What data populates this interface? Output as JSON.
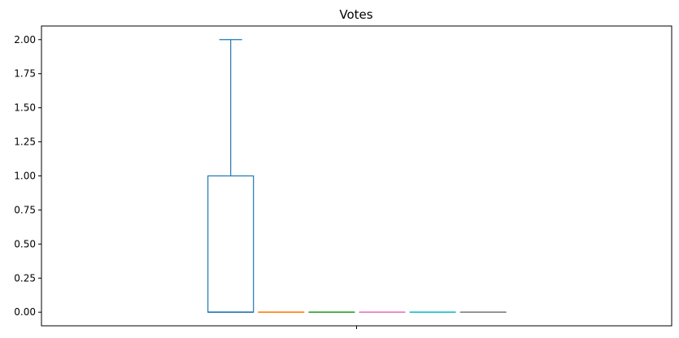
{
  "chart_data": {
    "type": "box",
    "title": "Votes",
    "xlabel": "",
    "ylabel": "",
    "ylim": [
      -0.1,
      2.1
    ],
    "yticks": [
      0.0,
      0.25,
      0.5,
      0.75,
      1.0,
      1.25,
      1.5,
      1.75,
      2.0
    ],
    "ytick_labels": [
      "0.00",
      "0.25",
      "0.50",
      "0.75",
      "1.00",
      "1.25",
      "1.50",
      "1.75",
      "2.00"
    ],
    "grid": false,
    "series": [
      {
        "min": 0,
        "q1": 0,
        "median": 0,
        "q3": 1,
        "max": 2,
        "color": "#1f77b4"
      },
      {
        "min": 0,
        "q1": 0,
        "median": 0,
        "q3": 0,
        "max": 0,
        "color": "#ff7f0e"
      },
      {
        "min": 0,
        "q1": 0,
        "median": 0,
        "q3": 0,
        "max": 0,
        "color": "#2ca02c"
      },
      {
        "min": 0,
        "q1": 0,
        "median": 0,
        "q3": 0,
        "max": 0,
        "color": "#e377c2"
      },
      {
        "min": 0,
        "q1": 0,
        "median": 0,
        "q3": 0,
        "max": 0,
        "color": "#17becf"
      },
      {
        "min": 0,
        "q1": 0,
        "median": 0,
        "q3": 0,
        "max": 0,
        "color": "#7f7f7f"
      }
    ]
  }
}
